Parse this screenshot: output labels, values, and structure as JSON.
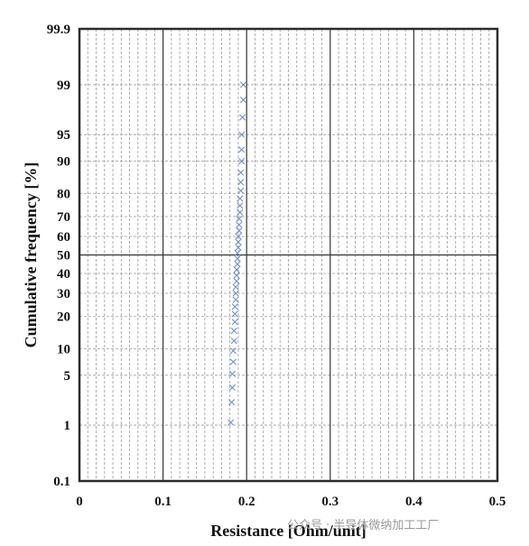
{
  "chart_data": {
    "type": "scatter",
    "title": "",
    "xlabel": "Resistance [Ohm/unit]",
    "ylabel": "Cumulative frequency [%]",
    "x_scale": "linear",
    "y_scale": "normal-probability",
    "xlim": [
      0,
      0.5
    ],
    "ylim": [
      0.1,
      99.9
    ],
    "x_ticks": [
      0,
      0.1,
      0.2,
      0.3,
      0.4,
      0.5
    ],
    "x_tick_labels": [
      "0",
      "0.1",
      "0.2",
      "0.3",
      "0.4",
      "0.5"
    ],
    "y_ticks": [
      0.1,
      1,
      5,
      10,
      20,
      30,
      40,
      50,
      60,
      70,
      80,
      90,
      95,
      99,
      99.9
    ],
    "y_tick_labels": [
      "0.1",
      "1",
      "5",
      "10",
      "20",
      "30",
      "40",
      "50",
      "60",
      "70",
      "80",
      "90",
      "95",
      "99",
      "99.9"
    ],
    "x_minor_step": 0.01,
    "grid": true,
    "marker": "x",
    "marker_color": "#6f93cc",
    "series": [
      {
        "x": [
          0.181,
          0.182,
          0.183,
          0.183,
          0.184,
          0.184,
          0.185,
          0.185,
          0.186,
          0.186,
          0.186,
          0.187,
          0.187,
          0.187,
          0.188,
          0.188,
          0.188,
          0.189,
          0.189,
          0.189,
          0.19,
          0.19,
          0.19,
          0.191,
          0.191,
          0.191,
          0.192,
          0.192,
          0.192,
          0.193,
          0.193,
          0.193,
          0.194,
          0.194,
          0.194,
          0.195,
          0.196,
          0.196
        ],
        "y": [
          1.1,
          2.2,
          3.5,
          5.2,
          7.2,
          9.5,
          12,
          15,
          18,
          21,
          24,
          27,
          30,
          33,
          36,
          39,
          42,
          45,
          48,
          51,
          54,
          57,
          60,
          63,
          66,
          69,
          72,
          75,
          78,
          81,
          84,
          87,
          90,
          92.5,
          95,
          97,
          98.3,
          99
        ]
      }
    ]
  },
  "watermark_text": "公众号 · 半导体微纳加工工厂"
}
